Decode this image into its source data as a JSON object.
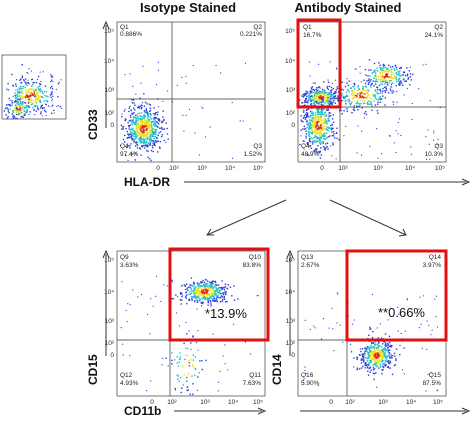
{
  "chart_data": [
    {
      "type": "scatter",
      "title": "Isotype Stained",
      "xlabel": "",
      "ylabel": "CD33",
      "xscale": "log",
      "yscale": "log",
      "xlim": [
        0,
        100000
      ],
      "ylim": [
        0,
        100000
      ],
      "x_ticks": [
        "0",
        "10²",
        "10³",
        "10⁴",
        "10⁵"
      ],
      "y_ticks": [
        "0",
        "10²",
        "10³",
        "10⁴",
        "10⁵"
      ],
      "quadrants": [
        {
          "name": "Q1",
          "value": "0.886%"
        },
        {
          "name": "Q2",
          "value": "0.221%"
        },
        {
          "name": "Q3",
          "value": "1.52%"
        },
        {
          "name": "Q4",
          "value": "97.4%"
        }
      ]
    },
    {
      "type": "scatter",
      "title": "Antibody Stained",
      "xlabel": "",
      "ylabel": "",
      "xscale": "log",
      "yscale": "log",
      "xlim": [
        0,
        100000
      ],
      "ylim": [
        0,
        100000
      ],
      "x_ticks": [
        "0",
        "10²",
        "10³",
        "10⁴",
        "10⁵"
      ],
      "y_ticks": [
        "0",
        "10²",
        "10³",
        "10⁴",
        "10⁵"
      ],
      "quadrants": [
        {
          "name": "Q1",
          "value": "16.7%"
        },
        {
          "name": "Q2",
          "value": "24.1%"
        },
        {
          "name": "Q3",
          "value": "10.3%"
        },
        {
          "name": "Q4",
          "value": "48.9%"
        }
      ],
      "highlight": "Q1"
    },
    {
      "type": "scatter",
      "title": "",
      "xlabel": "CD11b",
      "ylabel": "CD15",
      "xscale": "log",
      "yscale": "log",
      "xlim": [
        0,
        100000
      ],
      "ylim": [
        0,
        100000
      ],
      "x_ticks": [
        "0",
        "10²",
        "10³",
        "10⁴",
        "10⁵"
      ],
      "y_ticks": [
        "0",
        "10²",
        "10³",
        "10⁴",
        "10⁵"
      ],
      "quadrants": [
        {
          "name": "Q9",
          "value": "3.63%"
        },
        {
          "name": "Q10",
          "value": "83.8%"
        },
        {
          "name": "Q11",
          "value": "7.63%"
        },
        {
          "name": "Q12",
          "value": "4.93%"
        }
      ],
      "highlight": "Q10",
      "annotation": "*13.9%"
    },
    {
      "type": "scatter",
      "title": "",
      "xlabel": "",
      "ylabel": "CD14",
      "xscale": "log",
      "yscale": "log",
      "xlim": [
        0,
        100000
      ],
      "ylim": [
        0,
        100000
      ],
      "x_ticks": [
        "0",
        "10²",
        "10³",
        "10⁴",
        "10⁵"
      ],
      "y_ticks": [
        "0",
        "10²",
        "10³",
        "10⁴",
        "10⁵"
      ],
      "quadrants": [
        {
          "name": "Q13",
          "value": "2.67%"
        },
        {
          "name": "Q14",
          "value": "3.97%"
        },
        {
          "name": "Q15",
          "value": "87.5%"
        },
        {
          "name": "Q16",
          "value": "5.90%"
        }
      ],
      "highlight": "Q14",
      "annotation": "**0.66%"
    }
  ],
  "axis_under_top_row": "HLA-DR",
  "colors": {
    "highlight": "#e01010",
    "density_low": "#2b3fd8",
    "density_mid": "#1fc2c8",
    "density_high": "#f0e020",
    "density_peak": "#e02a10"
  }
}
